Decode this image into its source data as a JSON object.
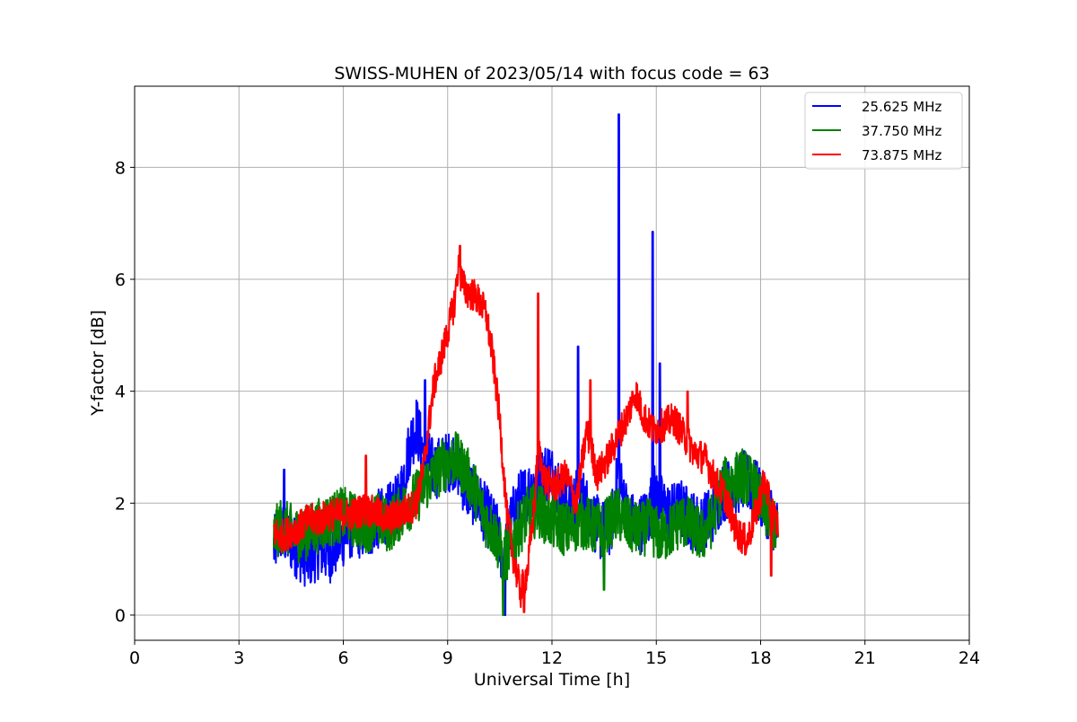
{
  "chart_data": {
    "type": "line",
    "title": "SWISS-MUHEN of 2023/05/14 with focus code = 63",
    "xlabel": "Universal Time [h]",
    "ylabel": "Y-factor [dB]",
    "xlim": [
      0,
      24
    ],
    "ylim": [
      -0.45,
      9.45
    ],
    "xticks": [
      0,
      3,
      6,
      9,
      12,
      15,
      18,
      21,
      24
    ],
    "yticks": [
      0,
      2,
      4,
      6,
      8
    ],
    "grid": true,
    "legend_position": "top-right",
    "series": [
      {
        "name": "25.625 MHz",
        "color": "#0000ff",
        "x": [
          4.0,
          4.2,
          4.5,
          4.8,
          5.0,
          5.3,
          5.6,
          6.0,
          6.3,
          6.6,
          7.0,
          7.3,
          7.6,
          7.9,
          8.1,
          8.3,
          8.6,
          8.9,
          9.2,
          9.5,
          9.8,
          10.1,
          10.4,
          10.6,
          10.8,
          11.0,
          11.3,
          11.6,
          11.9,
          12.2,
          12.5,
          12.8,
          13.1,
          13.4,
          13.7,
          13.9,
          14.2,
          14.5,
          14.8,
          14.9,
          15.1,
          15.4,
          15.7,
          16.0,
          16.3,
          16.6,
          16.9,
          17.2,
          17.5,
          17.8,
          18.0,
          18.3,
          18.5
        ],
        "y": [
          1.2,
          1.5,
          1.3,
          1.1,
          1.0,
          1.2,
          1.1,
          1.4,
          1.6,
          1.5,
          1.7,
          1.8,
          2.0,
          3.0,
          3.4,
          2.9,
          2.6,
          2.7,
          2.8,
          2.3,
          2.1,
          1.8,
          1.5,
          1.0,
          1.6,
          2.0,
          2.2,
          2.4,
          2.6,
          2.3,
          1.9,
          2.2,
          1.8,
          1.5,
          1.6,
          2.5,
          1.7,
          1.6,
          1.8,
          2.2,
          2.0,
          1.8,
          1.9,
          1.7,
          1.6,
          1.8,
          2.2,
          2.3,
          2.4,
          2.3,
          2.1,
          1.8,
          1.5
        ]
      },
      {
        "name": "37.750 MHz",
        "color": "#008000",
        "x": [
          4.0,
          4.2,
          4.5,
          4.8,
          5.0,
          5.3,
          5.6,
          6.0,
          6.3,
          6.6,
          7.0,
          7.3,
          7.6,
          7.9,
          8.1,
          8.3,
          8.6,
          8.9,
          9.2,
          9.5,
          9.8,
          10.1,
          10.4,
          10.6,
          10.8,
          11.0,
          11.3,
          11.6,
          11.9,
          12.2,
          12.5,
          12.8,
          13.1,
          13.4,
          13.7,
          13.9,
          14.2,
          14.5,
          14.8,
          15.1,
          15.4,
          15.7,
          16.0,
          16.3,
          16.6,
          16.9,
          17.2,
          17.5,
          17.8,
          18.0,
          18.3,
          18.5
        ],
        "y": [
          1.4,
          1.6,
          1.5,
          1.4,
          1.5,
          1.6,
          1.7,
          1.8,
          1.7,
          1.6,
          1.7,
          1.6,
          1.8,
          2.0,
          2.1,
          2.3,
          2.5,
          2.7,
          2.8,
          2.6,
          2.2,
          1.7,
          1.4,
          1.0,
          1.2,
          1.5,
          1.8,
          1.9,
          1.7,
          1.6,
          1.5,
          1.7,
          1.6,
          1.5,
          1.7,
          1.8,
          1.6,
          1.5,
          1.6,
          1.4,
          1.5,
          1.7,
          1.6,
          1.4,
          1.7,
          2.3,
          2.4,
          2.5,
          2.3,
          2.0,
          1.7,
          1.4
        ]
      },
      {
        "name": "73.875 MHz",
        "color": "#ff0000",
        "x": [
          4.0,
          4.2,
          4.5,
          4.8,
          5.0,
          5.3,
          5.6,
          6.0,
          6.3,
          6.6,
          7.0,
          7.3,
          7.6,
          7.9,
          8.1,
          8.3,
          8.6,
          8.9,
          9.2,
          9.3,
          9.5,
          9.8,
          10.1,
          10.3,
          10.5,
          10.7,
          10.9,
          11.1,
          11.3,
          11.5,
          11.6,
          11.8,
          12.1,
          12.4,
          12.7,
          13.0,
          13.3,
          13.6,
          13.9,
          14.2,
          14.4,
          14.6,
          14.9,
          15.2,
          15.5,
          15.8,
          16.1,
          16.4,
          16.7,
          17.0,
          17.3,
          17.6,
          17.9,
          18.1,
          18.3,
          18.5
        ],
        "y": [
          1.5,
          1.4,
          1.5,
          1.6,
          1.7,
          1.7,
          1.8,
          1.8,
          1.8,
          1.9,
          1.8,
          1.7,
          1.8,
          1.9,
          2.0,
          2.6,
          4.1,
          4.8,
          5.6,
          6.2,
          5.8,
          5.7,
          5.4,
          4.6,
          3.5,
          1.8,
          1.0,
          0.4,
          0.8,
          2.0,
          3.0,
          2.4,
          2.3,
          2.5,
          2.0,
          3.3,
          2.5,
          2.8,
          3.2,
          3.6,
          4.0,
          3.6,
          3.3,
          3.4,
          3.5,
          3.2,
          2.9,
          2.8,
          2.4,
          2.1,
          1.5,
          1.3,
          1.9,
          2.4,
          1.9,
          1.6
        ]
      }
    ],
    "spikes": [
      {
        "series": 0,
        "x": 13.92,
        "y": 8.95
      },
      {
        "series": 0,
        "x": 14.9,
        "y": 6.85
      },
      {
        "series": 0,
        "x": 15.1,
        "y": 4.5
      },
      {
        "series": 0,
        "x": 12.75,
        "y": 4.8
      },
      {
        "series": 0,
        "x": 8.35,
        "y": 4.2
      },
      {
        "series": 0,
        "x": 4.3,
        "y": 2.6
      },
      {
        "series": 0,
        "x": 10.65,
        "y": 0.0
      },
      {
        "series": 1,
        "x": 10.6,
        "y": 0.0
      },
      {
        "series": 1,
        "x": 13.5,
        "y": 0.45
      },
      {
        "series": 2,
        "x": 11.6,
        "y": 5.75
      },
      {
        "series": 2,
        "x": 9.35,
        "y": 6.6
      },
      {
        "series": 2,
        "x": 6.65,
        "y": 2.85
      },
      {
        "series": 2,
        "x": 11.2,
        "y": 0.05
      },
      {
        "series": 2,
        "x": 18.3,
        "y": 0.7
      },
      {
        "series": 2,
        "x": 13.1,
        "y": 4.2
      },
      {
        "series": 2,
        "x": 15.9,
        "y": 4.0
      }
    ]
  }
}
